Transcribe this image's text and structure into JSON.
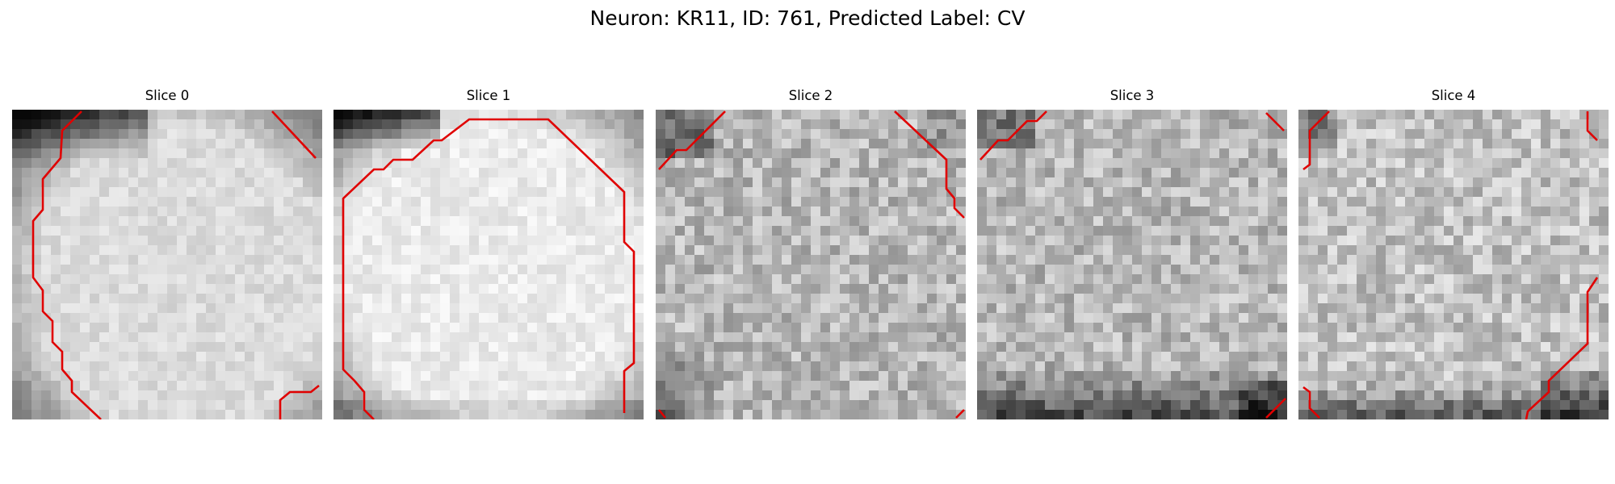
{
  "figure": {
    "title": "Neuron: KR11, ID: 761, Predicted Label: CV"
  },
  "panels": [
    {
      "title": "Slice 0"
    },
    {
      "title": "Slice 1"
    },
    {
      "title": "Slice 2"
    },
    {
      "title": "Slice 3"
    },
    {
      "title": "Slice 4"
    }
  ],
  "colors": {
    "contour": "#e00000",
    "colormap": "gray"
  }
}
